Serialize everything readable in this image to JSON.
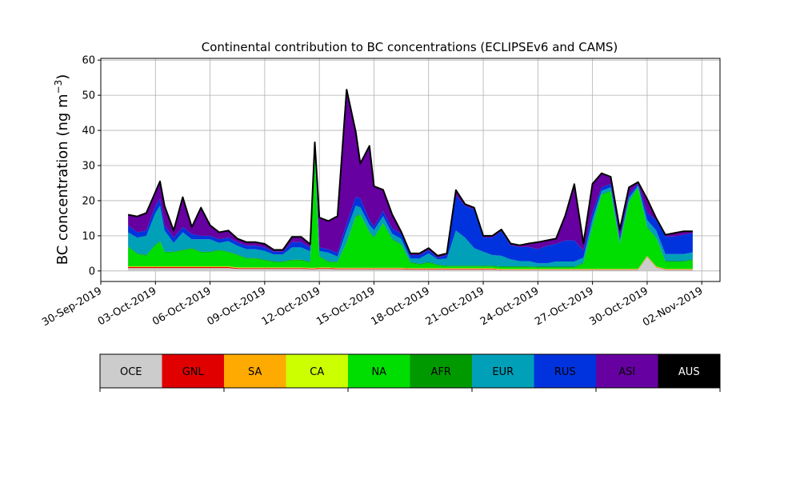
{
  "chart_data": {
    "type": "area",
    "stacked": true,
    "title": "Continental contribution to BC concentrations (ECLIPSEv6 and CAMS)",
    "ylabel_main": "BC concentration (ng m",
    "ylabel_sup": "−3",
    "ylabel_close": ")",
    "ylim": [
      -3,
      60.5
    ],
    "yticks": [
      0,
      10,
      20,
      30,
      40,
      50,
      60
    ],
    "xlim": [
      "2019-09-30",
      "2019-11-03"
    ],
    "xticks": [
      "2019-09-30",
      "2019-10-03",
      "2019-10-06",
      "2019-10-09",
      "2019-10-12",
      "2019-10-15",
      "2019-10-18",
      "2019-10-21",
      "2019-10-24",
      "2019-10-27",
      "2019-10-30",
      "2019-11-02"
    ],
    "xtick_labels": [
      "30-Sep-2019",
      "03-Oct-2019",
      "06-Oct-2019",
      "09-Oct-2019",
      "12-Oct-2019",
      "15-Oct-2019",
      "18-Oct-2019",
      "21-Oct-2019",
      "24-Oct-2019",
      "27-Oct-2019",
      "30-Oct-2019",
      "02-Nov-2019"
    ],
    "grid": true,
    "x": [
      "2019-10-01 12:00",
      "2019-10-02 00:00",
      "2019-10-02 12:00",
      "2019-10-03 00:00",
      "2019-10-03 06:00",
      "2019-10-03 12:00",
      "2019-10-04 00:00",
      "2019-10-04 12:00",
      "2019-10-05 00:00",
      "2019-10-05 12:00",
      "2019-10-06 00:00",
      "2019-10-06 12:00",
      "2019-10-07 00:00",
      "2019-10-07 12:00",
      "2019-10-08 00:00",
      "2019-10-08 12:00",
      "2019-10-09 00:00",
      "2019-10-09 12:00",
      "2019-10-10 00:00",
      "2019-10-10 12:00",
      "2019-10-11 00:00",
      "2019-10-11 12:00",
      "2019-10-11 18:00",
      "2019-10-12 00:00",
      "2019-10-12 12:00",
      "2019-10-13 00:00",
      "2019-10-13 12:00",
      "2019-10-14 00:00",
      "2019-10-14 06:00",
      "2019-10-14 18:00",
      "2019-10-15 00:00",
      "2019-10-15 12:00",
      "2019-10-16 00:00",
      "2019-10-16 12:00",
      "2019-10-17 00:00",
      "2019-10-17 12:00",
      "2019-10-18 00:00",
      "2019-10-18 12:00",
      "2019-10-19 00:00",
      "2019-10-19 12:00",
      "2019-10-20 00:00",
      "2019-10-20 12:00",
      "2019-10-21 00:00",
      "2019-10-21 12:00",
      "2019-10-22 00:00",
      "2019-10-22 12:00",
      "2019-10-23 00:00",
      "2019-10-23 12:00",
      "2019-10-24 00:00",
      "2019-10-24 12:00",
      "2019-10-25 00:00",
      "2019-10-25 12:00",
      "2019-10-26 00:00",
      "2019-10-26 12:00",
      "2019-10-27 00:00",
      "2019-10-27 12:00",
      "2019-10-28 00:00",
      "2019-10-28 12:00",
      "2019-10-29 00:00",
      "2019-10-29 12:00",
      "2019-10-30 00:00",
      "2019-10-30 12:00",
      "2019-10-31 00:00",
      "2019-10-31 12:00",
      "2019-11-01 00:00",
      "2019-11-01 12:00"
    ],
    "series": [
      {
        "name": "OCE",
        "color": "#cccccc",
        "values": [
          0.8,
          0.8,
          0.8,
          0.8,
          0.8,
          0.8,
          0.8,
          0.8,
          0.8,
          0.8,
          0.8,
          0.8,
          0.8,
          0.6,
          0.6,
          0.6,
          0.6,
          0.6,
          0.6,
          0.6,
          0.6,
          0.5,
          0.5,
          0.6,
          0.6,
          0.5,
          0.5,
          0.5,
          0.5,
          0.5,
          0.5,
          0.5,
          0.5,
          0.5,
          0.4,
          0.4,
          0.4,
          0.4,
          0.4,
          0.4,
          0.4,
          0.4,
          0.4,
          0.4,
          0.3,
          0.3,
          0.3,
          0.3,
          0.3,
          0.3,
          0.3,
          0.3,
          0.3,
          0.3,
          0.3,
          0.3,
          0.3,
          0.3,
          0.3,
          0.3,
          4.0,
          1.0,
          0.3,
          0.3,
          0.3,
          0.3
        ]
      },
      {
        "name": "GNL",
        "color": "#e00000",
        "values": [
          0.3,
          0.3,
          0.3,
          0.3,
          0.3,
          0.3,
          0.3,
          0.3,
          0.3,
          0.3,
          0.3,
          0.3,
          0.3,
          0.2,
          0.2,
          0.2,
          0.2,
          0.2,
          0.2,
          0.2,
          0.2,
          0.2,
          0.2,
          0.2,
          0.2,
          0.2,
          0.2,
          0.2,
          0.2,
          0.2,
          0.2,
          0.2,
          0.2,
          0.2,
          0.2,
          0.2,
          0.2,
          0.2,
          0.2,
          0.2,
          0.2,
          0.2,
          0.2,
          0.2,
          0.1,
          0.1,
          0.1,
          0.1,
          0.1,
          0.1,
          0.1,
          0.1,
          0.1,
          0.1,
          0.1,
          0.1,
          0.1,
          0.1,
          0.1,
          0.1,
          0.1,
          0.1,
          0.1,
          0.1,
          0.1,
          0.1
        ]
      },
      {
        "name": "SA",
        "color": "#ffaa00",
        "values": [
          0.1,
          0.1,
          0.1,
          0.1,
          0.1,
          0.1,
          0.1,
          0.1,
          0.1,
          0.1,
          0.1,
          0.1,
          0.1,
          0.1,
          0.1,
          0.1,
          0.1,
          0.1,
          0.1,
          0.1,
          0.1,
          0.1,
          0.1,
          0.1,
          0.1,
          0.1,
          0.1,
          0.1,
          0.1,
          0.1,
          0.1,
          0.1,
          0.1,
          0.1,
          0.1,
          0.1,
          0.1,
          0.1,
          0.1,
          0.1,
          0.1,
          0.1,
          0.1,
          0.1,
          0.1,
          0.1,
          0.1,
          0.1,
          0.1,
          0.1,
          0.1,
          0.1,
          0.1,
          0.1,
          0.1,
          0.1,
          0.1,
          0.1,
          0.1,
          0.1,
          0.1,
          0.1,
          0.1,
          0.1,
          0.1,
          0.1
        ]
      },
      {
        "name": "CA",
        "color": "#ccff00",
        "values": [
          0.1,
          0.1,
          0.1,
          0.1,
          0.1,
          0.1,
          0.1,
          0.1,
          0.1,
          0.1,
          0.1,
          0.1,
          0.1,
          0.1,
          0.1,
          0.1,
          0.1,
          0.1,
          0.1,
          0.1,
          0.1,
          0.1,
          0.1,
          0.1,
          0.1,
          0.1,
          0.1,
          0.1,
          0.1,
          0.1,
          0.1,
          0.1,
          0.1,
          0.1,
          0.1,
          0.1,
          0.1,
          0.1,
          0.1,
          0.1,
          0.1,
          0.1,
          0.1,
          0.1,
          0.1,
          0.1,
          0.1,
          0.1,
          0.1,
          0.1,
          0.1,
          0.1,
          0.1,
          0.1,
          0.1,
          0.1,
          0.1,
          0.1,
          0.1,
          0.1,
          0.1,
          0.1,
          0.1,
          0.1,
          0.1,
          0.1
        ]
      },
      {
        "name": "NA",
        "color": "#00dd00",
        "values": [
          5.5,
          3.5,
          3.0,
          6.0,
          7.0,
          4.0,
          4.0,
          4.5,
          5.0,
          4.0,
          4.0,
          4.5,
          4.0,
          3.5,
          2.5,
          2.5,
          2.0,
          1.5,
          1.5,
          2.0,
          2.0,
          1.5,
          32.5,
          3.0,
          1.5,
          1.5,
          7.0,
          14.5,
          15.0,
          10.0,
          8.5,
          12.5,
          8.0,
          6.5,
          1.5,
          1.0,
          1.5,
          0.8,
          0.5,
          0.5,
          0.5,
          0.5,
          0.5,
          0.5,
          0.5,
          0.5,
          0.5,
          0.5,
          0.4,
          0.4,
          0.4,
          0.4,
          0.4,
          1.5,
          12.0,
          21.0,
          22.0,
          7.0,
          19.0,
          23.0,
          8.0,
          8.0,
          2.0,
          2.0,
          2.0,
          2.5
        ]
      },
      {
        "name": "AFR",
        "color": "#009900",
        "values": [
          0.2,
          0.2,
          0.2,
          0.2,
          0.2,
          0.2,
          0.2,
          0.2,
          0.2,
          0.2,
          0.2,
          0.2,
          0.2,
          0.2,
          0.2,
          0.2,
          0.2,
          0.2,
          0.2,
          0.2,
          0.2,
          0.2,
          0.2,
          0.2,
          0.2,
          0.2,
          0.2,
          0.2,
          0.2,
          0.2,
          0.2,
          0.2,
          0.2,
          0.2,
          0.2,
          0.2,
          0.2,
          0.2,
          0.2,
          0.2,
          0.2,
          0.2,
          0.2,
          0.2,
          0.2,
          0.2,
          0.2,
          0.2,
          0.2,
          0.2,
          0.2,
          0.2,
          0.2,
          0.2,
          0.2,
          0.2,
          0.2,
          0.2,
          0.2,
          0.2,
          0.2,
          0.2,
          0.2,
          0.2,
          0.2,
          0.2
        ]
      },
      {
        "name": "EUR",
        "color": "#00a0b8",
        "values": [
          4.0,
          4.5,
          5.5,
          9.0,
          10.0,
          6.0,
          2.5,
          5.0,
          2.5,
          3.5,
          3.5,
          2.0,
          3.0,
          2.5,
          2.5,
          2.5,
          2.5,
          2.0,
          2.0,
          3.5,
          3.5,
          3.0,
          2.5,
          1.5,
          2.5,
          1.5,
          3.5,
          3.0,
          2.0,
          2.0,
          2.0,
          2.0,
          1.5,
          1.5,
          1.0,
          1.5,
          2.5,
          1.5,
          2.0,
          10.0,
          8.0,
          5.0,
          4.0,
          3.0,
          3.0,
          2.0,
          1.5,
          1.5,
          1.0,
          1.0,
          1.5,
          1.5,
          1.5,
          1.5,
          2.0,
          1.0,
          1.0,
          1.0,
          1.0,
          0.5,
          2.0,
          2.0,
          2.0,
          2.0,
          2.0,
          2.0
        ]
      },
      {
        "name": "RUS",
        "color": "#0033dd",
        "values": [
          2.0,
          1.5,
          1.5,
          2.0,
          2.0,
          1.5,
          1.5,
          1.5,
          1.5,
          1.0,
          1.0,
          1.0,
          1.0,
          1.0,
          1.0,
          1.0,
          1.0,
          0.8,
          0.8,
          1.5,
          1.5,
          1.0,
          0.5,
          1.0,
          1.0,
          1.0,
          2.0,
          2.5,
          2.5,
          1.5,
          1.0,
          1.5,
          1.5,
          1.5,
          1.0,
          1.0,
          1.0,
          0.5,
          1.0,
          10.0,
          9.0,
          11.0,
          4.0,
          5.0,
          7.0,
          4.0,
          4.0,
          4.0,
          4.0,
          5.0,
          5.0,
          6.0,
          6.0,
          2.0,
          2.0,
          1.0,
          1.0,
          1.0,
          1.0,
          0.5,
          2.0,
          3.0,
          5.0,
          5.0,
          5.5,
          5.5
        ]
      },
      {
        "name": "ASI",
        "color": "#6600a0",
        "values": [
          3.0,
          4.5,
          5.0,
          4.0,
          5.0,
          5.5,
          2.0,
          8.5,
          2.0,
          8.0,
          3.0,
          2.0,
          2.0,
          1.0,
          1.0,
          1.0,
          1.0,
          0.5,
          0.5,
          1.5,
          1.5,
          1.0,
          0.0,
          8.5,
          8.0,
          10.5,
          38.0,
          18.5,
          10.0,
          21.0,
          11.5,
          6.0,
          4.0,
          0.5,
          0.5,
          0.5,
          0.5,
          0.5,
          0.5,
          1.5,
          0.5,
          0.5,
          0.5,
          0.5,
          0.5,
          0.5,
          0.5,
          1.0,
          2.0,
          1.5,
          1.5,
          7.0,
          16.0,
          2.0,
          8.0,
          4.0,
          2.0,
          2.0,
          2.0,
          0.5,
          4.0,
          0.5,
          0.5,
          1.0,
          1.0,
          0.5
        ]
      },
      {
        "name": "AUS",
        "color": "#000000",
        "values": [
          0.0,
          0.0,
          0.0,
          0.0,
          0.0,
          0.0,
          0.0,
          0.0,
          0.0,
          0.0,
          0.0,
          0.0,
          0.0,
          0.0,
          0.0,
          0.0,
          0.0,
          0.0,
          0.0,
          0.0,
          0.0,
          0.0,
          0.0,
          0.0,
          0.0,
          0.0,
          0.0,
          0.0,
          0.0,
          0.0,
          0.0,
          0.0,
          0.0,
          0.0,
          0.0,
          0.0,
          0.0,
          0.0,
          0.0,
          0.0,
          0.0,
          0.0,
          0.0,
          0.0,
          0.0,
          0.0,
          0.0,
          0.0,
          0.0,
          0.0,
          0.0,
          0.0,
          0.0,
          0.0,
          0.0,
          0.0,
          0.0,
          0.0,
          0.0,
          0.0,
          0.0,
          0.0,
          0.0,
          0.0,
          0.0,
          0.0
        ]
      }
    ],
    "total_outline_color": "#000000",
    "colorbar": {
      "labels": [
        "OCE",
        "GNL",
        "SA",
        "CA",
        "NA",
        "AFR",
        "EUR",
        "RUS",
        "ASI",
        "AUS"
      ],
      "colors": [
        "#cccccc",
        "#e00000",
        "#ffaa00",
        "#ccff00",
        "#00dd00",
        "#009900",
        "#00a0b8",
        "#0033dd",
        "#6600a0",
        "#000000"
      ],
      "label_colors": [
        "#000000",
        "#000000",
        "#000000",
        "#000000",
        "#000000",
        "#000000",
        "#000000",
        "#000000",
        "#000000",
        "#ffffff"
      ]
    }
  }
}
